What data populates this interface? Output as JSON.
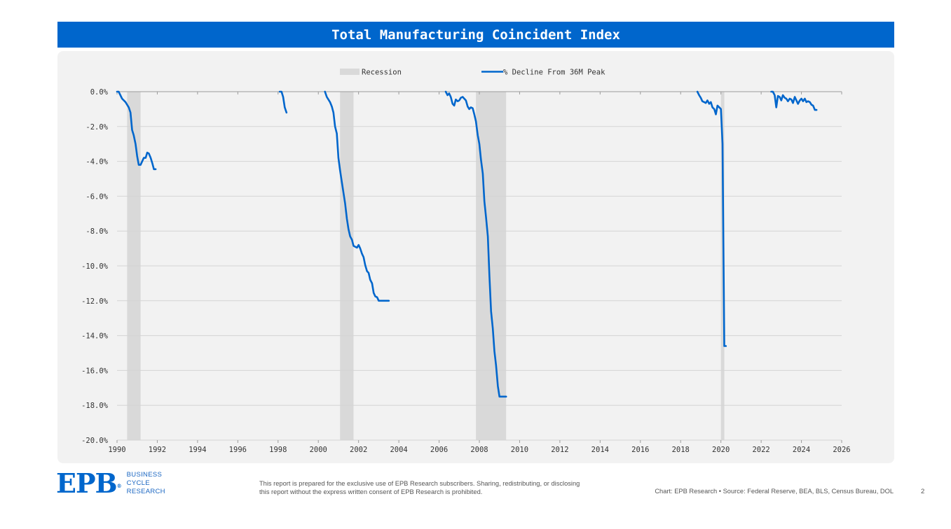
{
  "header": {
    "title": "Total Manufacturing Coincident Index"
  },
  "footer": {
    "logo_text": "EPB",
    "logo_words": [
      "BUSINESS",
      "CYCLE",
      "RESEARCH"
    ],
    "disclaimer": "This report is prepared for the exclusive use of EPB Research subscribers. Sharing, redistributing, or disclosing this report without the express written consent of EPB Research is prohibited.",
    "source": "Chart: EPB Research  •  Source: Federal Reserve, BEA, BLS, Census Bureau, DOL",
    "page_number": "2"
  },
  "colors": {
    "accent": "#0066cc",
    "recession": "#d9d9d9",
    "panel": "#f2f2f2"
  },
  "chart_data": {
    "type": "line",
    "title": "Total Manufacturing Coincident Index",
    "xlabel": "",
    "ylabel": "",
    "xlim": [
      1990,
      2026
    ],
    "ylim": [
      -20,
      0
    ],
    "x_ticks": [
      "1990",
      "1992",
      "1994",
      "1996",
      "1998",
      "2000",
      "2002",
      "2004",
      "2006",
      "2008",
      "2010",
      "2012",
      "2014",
      "2016",
      "2018",
      "2020",
      "2022",
      "2024",
      "2026"
    ],
    "y_ticks": [
      "0.0%",
      "-2.0%",
      "-4.0%",
      "-6.0%",
      "-8.0%",
      "-10.0%",
      "-12.0%",
      "-14.0%",
      "-16.0%",
      "-18.0%",
      "-20.0%"
    ],
    "legend": {
      "position": "top-center",
      "entries": [
        "Recession",
        "% Decline From 36M Peak"
      ]
    },
    "grid": true,
    "recessions": [
      {
        "start": 1990.5,
        "end": 1991.17
      },
      {
        "start": 2001.08,
        "end": 2001.75
      },
      {
        "start": 2007.83,
        "end": 2009.33
      },
      {
        "start": 2020.0,
        "end": 2020.17
      }
    ],
    "series": [
      {
        "name": "% Decline From 36M Peak",
        "color": "#0066cc",
        "segments": [
          {
            "x": [
              1990.0,
              1990.08,
              1990.25,
              1990.42,
              1990.58,
              1990.67,
              1990.75,
              1990.83,
              1990.92,
              1991.0,
              1991.08,
              1991.17,
              1991.25,
              1991.33,
              1991.42,
              1991.5,
              1991.58,
              1991.67,
              1991.75,
              1991.83,
              1991.92
            ],
            "y": [
              0.0,
              0.0,
              -0.4,
              -0.6,
              -0.9,
              -1.2,
              -2.2,
              -2.5,
              -3.0,
              -3.7,
              -4.2,
              -4.2,
              -4.0,
              -3.8,
              -3.8,
              -3.5,
              -3.55,
              -3.8,
              -4.1,
              -4.45,
              -4.45
            ]
          },
          {
            "x": [
              1998.08,
              1998.17,
              1998.25,
              1998.33,
              1998.42
            ],
            "y": [
              0.0,
              0.0,
              -0.3,
              -0.9,
              -1.2
            ]
          },
          {
            "x": [
              2000.33,
              2000.42,
              2000.5,
              2000.58,
              2000.67,
              2000.75,
              2000.83,
              2000.92,
              2001.0,
              2001.08,
              2001.17,
              2001.25,
              2001.33,
              2001.42,
              2001.5,
              2001.58,
              2001.67,
              2001.75,
              2001.83,
              2001.92,
              2002.0,
              2002.08,
              2002.17,
              2002.25,
              2002.33,
              2002.42,
              2002.5,
              2002.58,
              2002.67,
              2002.75,
              2002.83,
              2002.92,
              2003.0,
              2003.08,
              2003.17,
              2003.25,
              2003.33,
              2003.42,
              2003.5
            ],
            "y": [
              0.0,
              -0.3,
              -0.45,
              -0.6,
              -0.85,
              -1.2,
              -2.0,
              -2.4,
              -3.8,
              -4.5,
              -5.2,
              -5.8,
              -6.4,
              -7.3,
              -7.9,
              -8.3,
              -8.5,
              -8.85,
              -8.9,
              -8.95,
              -8.8,
              -9.0,
              -9.3,
              -9.5,
              -9.95,
              -10.3,
              -10.4,
              -10.8,
              -11.0,
              -11.55,
              -11.75,
              -11.8,
              -12.0,
              -12.0,
              -12.0,
              -12.0,
              -12.0,
              -12.0,
              -12.0
            ]
          },
          {
            "x": [
              2006.33,
              2006.42,
              2006.5,
              2006.58,
              2006.67,
              2006.75,
              2006.83,
              2006.92,
              2007.0,
              2007.08,
              2007.17,
              2007.25,
              2007.33,
              2007.42,
              2007.5,
              2007.58,
              2007.67,
              2007.75,
              2007.83,
              2007.92,
              2008.0,
              2008.08,
              2008.17,
              2008.25,
              2008.33,
              2008.42,
              2008.5,
              2008.58,
              2008.67,
              2008.75,
              2008.83,
              2008.92,
              2009.0,
              2009.08,
              2009.17,
              2009.25,
              2009.33
            ],
            "y": [
              0.0,
              -0.2,
              -0.1,
              -0.3,
              -0.7,
              -0.8,
              -0.45,
              -0.55,
              -0.5,
              -0.35,
              -0.3,
              -0.4,
              -0.5,
              -0.85,
              -1.0,
              -0.9,
              -0.95,
              -1.3,
              -1.7,
              -2.5,
              -3.0,
              -3.9,
              -4.7,
              -6.3,
              -7.2,
              -8.3,
              -10.6,
              -12.6,
              -13.6,
              -14.9,
              -15.7,
              -16.9,
              -17.5,
              -17.5,
              -17.5,
              -17.5,
              -17.5
            ]
          },
          {
            "x": [
              2018.83,
              2018.92,
              2019.0,
              2019.08,
              2019.17,
              2019.25,
              2019.33,
              2019.42,
              2019.5,
              2019.58,
              2019.67,
              2019.75,
              2019.83,
              2019.92,
              2020.0,
              2020.08,
              2020.17,
              2020.25
            ],
            "y": [
              0.0,
              -0.2,
              -0.35,
              -0.55,
              -0.6,
              -0.65,
              -0.5,
              -0.7,
              -0.6,
              -0.9,
              -1.0,
              -1.3,
              -0.8,
              -0.9,
              -1.0,
              -3.0,
              -14.6,
              -14.6
            ]
          },
          {
            "x": [
              2022.5,
              2022.58,
              2022.67,
              2022.75,
              2022.83,
              2022.92,
              2023.0,
              2023.08,
              2023.17,
              2023.25,
              2023.33,
              2023.42,
              2023.5,
              2023.58,
              2023.67,
              2023.75,
              2023.83,
              2023.92,
              2024.0,
              2024.08,
              2024.17,
              2024.25,
              2024.33,
              2024.42,
              2024.5,
              2024.58,
              2024.67,
              2024.75
            ],
            "y": [
              0.0,
              0.0,
              -0.2,
              -0.9,
              -0.25,
              -0.3,
              -0.5,
              -0.2,
              -0.35,
              -0.4,
              -0.55,
              -0.4,
              -0.45,
              -0.65,
              -0.3,
              -0.5,
              -0.7,
              -0.5,
              -0.4,
              -0.55,
              -0.4,
              -0.6,
              -0.55,
              -0.6,
              -0.75,
              -0.8,
              -1.05,
              -1.05
            ]
          }
        ]
      }
    ]
  }
}
